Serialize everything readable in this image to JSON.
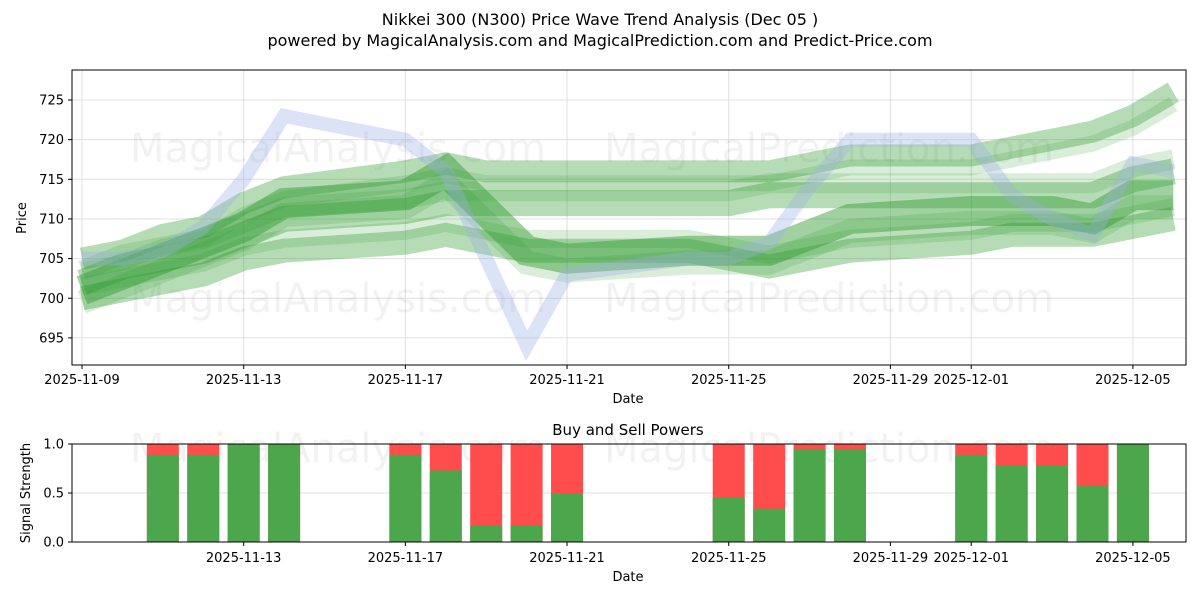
{
  "header": {
    "title": "Nikkei 300 (N300) Price Wave Trend Analysis (Dec 05 )",
    "subtitle": "powered by MagicalAnalysis.com and MagicalPrediction.com and Predict-Price.com"
  },
  "watermarks": [
    "MagicalAnalysis.com",
    "MagicalPrediction.com"
  ],
  "colors": {
    "wave_green": "#2e9a2e",
    "wave_blue": "#9fb0e8",
    "buy": "#4ca64c",
    "sell": "#ff4d4d",
    "grid": "#dddddd"
  },
  "chart_data": [
    {
      "type": "area",
      "title": "Nikkei 300 (N300) Price Wave Trend Analysis (Dec 05 )",
      "xlabel": "Date",
      "ylabel": "Price",
      "ylim": [
        692,
        729
      ],
      "xlim": [
        "2025-11-08",
        "2025-12-06"
      ],
      "grid": true,
      "x_ticks": [
        "2025-11-09",
        "2025-11-13",
        "2025-11-17",
        "2025-11-21",
        "2025-11-25",
        "2025-11-29",
        "2025-12-01",
        "2025-12-05"
      ],
      "y_ticks": [
        695,
        700,
        705,
        710,
        715,
        720,
        725
      ],
      "x": [
        "2025-11-09",
        "2025-11-10",
        "2025-11-11",
        "2025-11-12",
        "2025-11-13",
        "2025-11-14",
        "2025-11-17",
        "2025-11-18",
        "2025-11-19",
        "2025-11-20",
        "2025-11-21",
        "2025-11-24",
        "2025-11-25",
        "2025-11-26",
        "2025-11-27",
        "2025-11-28",
        "2025-12-01",
        "2025-12-02",
        "2025-12-03",
        "2025-12-04",
        "2025-12-05",
        "2025-12-06"
      ],
      "series": [
        {
          "name": "wave-upper-green",
          "values": [
            705,
            706,
            708,
            709,
            712,
            714,
            716,
            717,
            716,
            716,
            716,
            716,
            716,
            716,
            717,
            718,
            718,
            719,
            720,
            721,
            723,
            726
          ]
        },
        {
          "name": "wave-mid-green",
          "values": [
            702,
            704,
            705,
            706,
            708,
            710,
            711,
            712,
            712,
            712,
            712,
            712,
            712,
            713,
            713,
            713,
            713,
            713,
            713,
            713,
            715,
            716
          ]
        },
        {
          "name": "wave-core-green",
          "values": [
            701,
            703,
            705,
            707,
            709,
            712,
            713,
            716,
            711,
            706,
            705,
            706,
            706,
            706,
            708,
            710,
            711,
            711,
            711,
            710,
            713,
            713
          ]
        },
        {
          "name": "wave-lower-green",
          "values": [
            700,
            701,
            702,
            703,
            705,
            706,
            707,
            708,
            707,
            706,
            706,
            706,
            705,
            704,
            705,
            706,
            707,
            708,
            708,
            708,
            709,
            710
          ]
        },
        {
          "name": "wave-blue",
          "values": [
            705,
            705,
            706,
            709,
            715,
            723,
            720,
            716,
            705,
            694,
            703,
            705,
            705,
            707,
            714,
            720,
            720,
            713,
            710,
            708,
            717,
            716
          ]
        }
      ]
    },
    {
      "type": "bar",
      "title": "Buy and Sell Powers",
      "xlabel": "Date",
      "ylabel": "Signal Strength",
      "ylim": [
        0,
        1
      ],
      "y_ticks": [
        0.0,
        0.5,
        1.0
      ],
      "x_ticks": [
        "2025-11-13",
        "2025-11-17",
        "2025-11-21",
        "2025-11-25",
        "2025-11-29",
        "2025-12-01",
        "2025-12-05"
      ],
      "categories": [
        "2025-11-11",
        "2025-11-12",
        "2025-11-13",
        "2025-11-14",
        "2025-11-17",
        "2025-11-18",
        "2025-11-19",
        "2025-11-20",
        "2025-11-21",
        "2025-11-25",
        "2025-11-26",
        "2025-11-27",
        "2025-11-28",
        "2025-12-01",
        "2025-12-02",
        "2025-12-03",
        "2025-12-04",
        "2025-12-05"
      ],
      "series": [
        {
          "name": "Buy",
          "color": "#4ca64c",
          "values": [
            0.89,
            0.89,
            1.0,
            1.0,
            0.89,
            0.73,
            0.17,
            0.17,
            0.5,
            0.45,
            0.34,
            0.95,
            0.95,
            0.89,
            0.78,
            0.78,
            0.57,
            1.0
          ]
        },
        {
          "name": "Sell",
          "color": "#ff4d4d",
          "values": [
            0.11,
            0.11,
            0.0,
            0.0,
            0.11,
            0.27,
            0.83,
            0.83,
            0.5,
            0.55,
            0.66,
            0.05,
            0.05,
            0.11,
            0.22,
            0.22,
            0.43,
            0.0
          ]
        }
      ]
    }
  ],
  "labels": {
    "price_y": "Price",
    "date_x": "Date",
    "signal_y": "Signal Strength",
    "bottom_title": "Buy and Sell Powers"
  }
}
